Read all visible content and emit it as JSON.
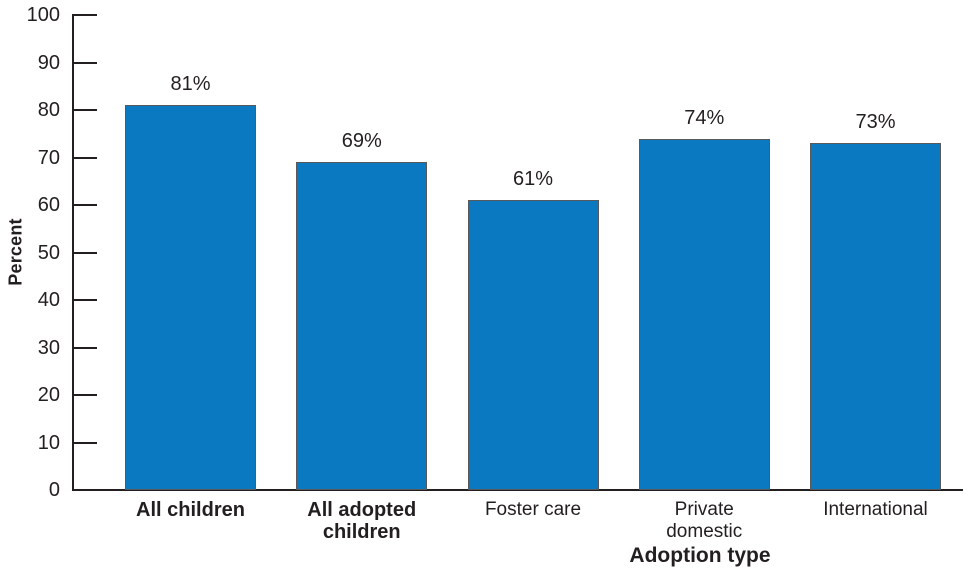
{
  "chart_data": {
    "type": "bar",
    "title": "",
    "xlabel": "Adoption type",
    "ylabel": "Percent",
    "categories": [
      "All children",
      "All adopted children",
      "Foster care",
      "Private domestic",
      "International"
    ],
    "category_lines": [
      [
        "All children"
      ],
      [
        "All adopted",
        "children"
      ],
      [
        "Foster care"
      ],
      [
        "Private",
        "domestic"
      ],
      [
        "International"
      ]
    ],
    "category_bold": [
      true,
      true,
      false,
      false,
      false
    ],
    "values": [
      81,
      69,
      61,
      74,
      73
    ],
    "value_labels": [
      "81%",
      "69%",
      "61%",
      "74%",
      "73%"
    ],
    "ylim": [
      0,
      100
    ],
    "yticks": [
      0,
      10,
      20,
      30,
      40,
      50,
      60,
      70,
      80,
      90,
      100
    ],
    "grid": false,
    "legend": "none",
    "bar_color": "#0b78c2",
    "bar_border_color": "#58595b",
    "axis_color": "#231f20",
    "text_color": "#231f20"
  }
}
